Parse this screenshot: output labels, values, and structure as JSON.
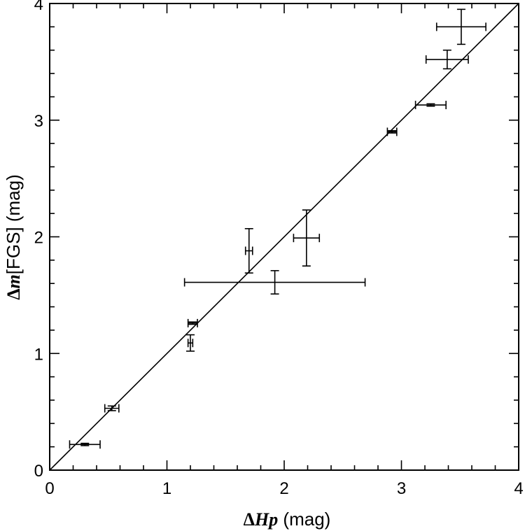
{
  "chart_data": {
    "type": "scatter",
    "title": "",
    "xlabel": {
      "delta": "Δ",
      "symbol": "Hp",
      "rest": " (mag)"
    },
    "ylabel": {
      "delta": "Δ",
      "symbol": "m",
      "rest": "[FGS] (mag)"
    },
    "xlim": [
      0,
      4
    ],
    "ylim": [
      0,
      4
    ],
    "xticks": [
      0,
      1,
      2,
      3,
      4
    ],
    "yticks": [
      0,
      1,
      2,
      3,
      4
    ],
    "reference_line": {
      "name": "one-to-one line",
      "slope": 1,
      "intercept": 0
    },
    "points": [
      {
        "x": 0.3,
        "y": 0.22,
        "xerr": 0.13,
        "yerr": 0.01
      },
      {
        "x": 0.53,
        "y": 0.53,
        "xerr": 0.06,
        "yerr": 0.02
      },
      {
        "x": 1.2,
        "y": 1.09,
        "xerr": 0.02,
        "yerr": 0.07
      },
      {
        "x": 1.22,
        "y": 1.26,
        "xerr": 0.04,
        "yerr": 0.01
      },
      {
        "x": 1.7,
        "y": 1.88,
        "xerr": 0.03,
        "yerr": 0.19
      },
      {
        "x": 1.92,
        "y": 1.61,
        "xerr": 0.77,
        "yerr": 0.1
      },
      {
        "x": 2.19,
        "y": 1.99,
        "xerr": 0.11,
        "yerr": 0.24
      },
      {
        "x": 2.92,
        "y": 2.9,
        "xerr": 0.04,
        "yerr": 0.01
      },
      {
        "x": 3.25,
        "y": 3.13,
        "xerr": 0.13,
        "yerr": 0.01
      },
      {
        "x": 3.39,
        "y": 3.52,
        "xerr": 0.18,
        "yerr": 0.08
      },
      {
        "x": 3.51,
        "y": 3.8,
        "xerr": 0.21,
        "yerr": 0.15
      }
    ]
  }
}
